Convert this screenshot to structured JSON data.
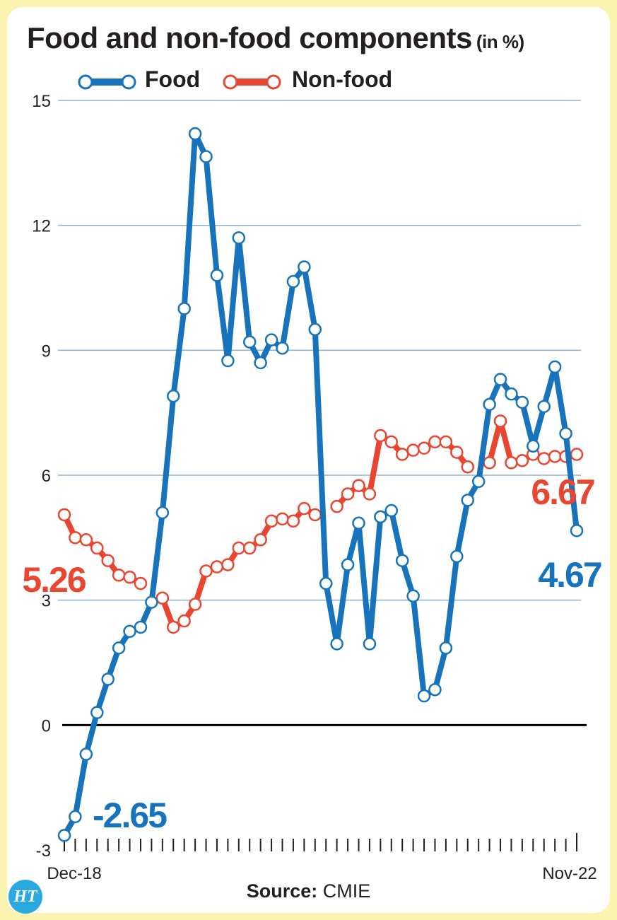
{
  "title": "Food and non-food components",
  "title_unit": "(in %)",
  "source_label": "Source:",
  "source_value": "CMIE",
  "logo_text": "HT",
  "chart_data": {
    "type": "line",
    "title": "Food and non-food components (in %)",
    "ylim": [
      -3,
      15
    ],
    "yticks": [
      -3,
      0,
      3,
      6,
      9,
      12,
      15
    ],
    "x_tick_labels": [
      "Dec-18",
      "Nov-22"
    ],
    "grid": true,
    "legend_position": "top-left",
    "series": [
      {
        "name": "Food",
        "color": "#1773bb",
        "values": [
          -2.65,
          -2.2,
          -0.7,
          0.3,
          1.1,
          1.85,
          2.25,
          2.35,
          2.95,
          5.1,
          7.9,
          10.0,
          14.2,
          13.65,
          10.8,
          8.75,
          11.7,
          9.2,
          8.7,
          9.25,
          9.05,
          10.65,
          11.0,
          9.5,
          3.4,
          1.95,
          3.85,
          4.85,
          1.95,
          5.0,
          5.15,
          3.95,
          3.1,
          0.7,
          0.85,
          1.85,
          4.05,
          5.4,
          5.85,
          7.7,
          8.3,
          7.95,
          7.75,
          6.7,
          7.65,
          8.6,
          7.0,
          4.67
        ]
      },
      {
        "name": "Non-food",
        "color": "#e84630",
        "values": [
          5.05,
          4.5,
          4.45,
          4.25,
          3.95,
          3.6,
          3.55,
          3.4,
          null,
          3.05,
          2.35,
          2.5,
          2.9,
          3.7,
          3.8,
          3.85,
          4.25,
          4.25,
          4.45,
          4.9,
          4.95,
          4.9,
          5.2,
          5.05,
          null,
          5.25,
          5.55,
          5.75,
          5.55,
          6.95,
          6.8,
          6.5,
          6.6,
          6.65,
          6.8,
          6.8,
          6.55,
          6.2,
          null,
          6.3,
          7.3,
          6.3,
          6.35,
          6.5,
          6.4,
          6.45,
          6.45,
          6.5
        ]
      }
    ],
    "annotations": [
      {
        "text": "-2.65",
        "color": "#1773bb"
      },
      {
        "text": "5.26",
        "color": "#e84630"
      },
      {
        "text": "6.67",
        "color": "#e84630"
      },
      {
        "text": "4.67",
        "color": "#1773bb"
      }
    ]
  }
}
